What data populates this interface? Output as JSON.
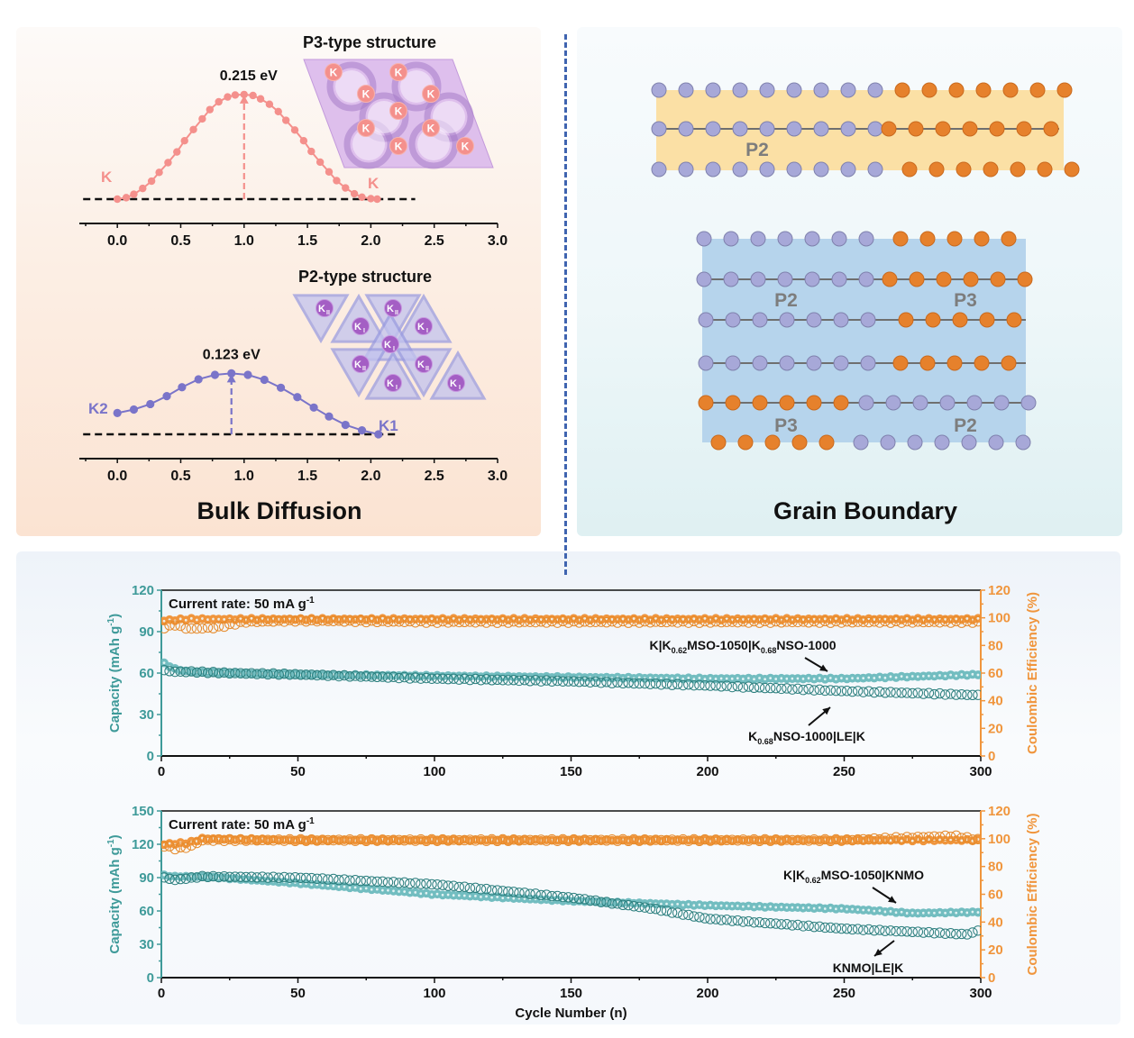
{
  "layout_panels": {
    "bulk_title": "Bulk Diffusion",
    "grain_title": "Grain Boundary"
  },
  "colors": {
    "p3_curve": "#f4908c",
    "p2_curve": "#7a74c9",
    "purple_atom": "#a7a8d8",
    "orange_atom": "#e6812c",
    "p2_band": "#fbe0a5",
    "gb_band": "#b6d4ec",
    "teal": "#3e9a99",
    "teal_fill": "#72bdc0",
    "orange_axis": "#f0953c",
    "divider": "#3f64b0"
  },
  "grain_boundary": {
    "top": {
      "band_label": "P2",
      "rows": [
        {
          "purple": 9,
          "orange": 7,
          "bonded": false
        },
        {
          "purple": 9,
          "orange": 7,
          "bonded": true
        },
        {
          "purple": 9,
          "orange": 7,
          "bonded": false
        }
      ]
    },
    "bottom": {
      "labels": [
        "P2",
        "P3",
        "P3",
        "P2"
      ],
      "rows": [
        {
          "left": "purple",
          "left_n": 7,
          "right": "orange",
          "right_n": 5,
          "bonded": false
        },
        {
          "left": "purple",
          "left_n": 7,
          "right": "orange",
          "right_n": 6,
          "bonded": true
        },
        {
          "left": "purple",
          "left_n": 7,
          "right": "orange",
          "right_n": 5,
          "bonded": true
        },
        {
          "left": "purple",
          "left_n": 7,
          "right": "orange",
          "right_n": 5,
          "bonded": true
        },
        {
          "left": "orange",
          "left_n": 6,
          "right": "purple",
          "right_n": 7,
          "bonded": true
        },
        {
          "left": "orange",
          "left_n": 5,
          "right": "purple",
          "right_n": 7,
          "bonded": false
        }
      ]
    }
  },
  "chart_data": [
    {
      "type": "line",
      "id": "p3-energy-profile",
      "title": "P3-type structure",
      "annotation": "0.215 eV",
      "start_label": "K",
      "end_label": "K",
      "x_ticks": [
        "0.0",
        "0.5",
        "1.0",
        "1.5",
        "2.0",
        "2.5",
        "3.0"
      ],
      "xlim": [
        -0.3,
        3.0
      ],
      "barrier_eV": 0.215,
      "barrier_x": 1.0,
      "structure_ion_labels": [
        "K",
        "K",
        "K",
        "K",
        "K",
        "K",
        "K",
        "K",
        "K"
      ],
      "x": [
        0.0,
        0.07,
        0.13,
        0.2,
        0.27,
        0.33,
        0.4,
        0.47,
        0.53,
        0.6,
        0.67,
        0.73,
        0.8,
        0.87,
        0.93,
        1.0,
        1.07,
        1.13,
        1.2,
        1.27,
        1.33,
        1.4,
        1.47,
        1.53,
        1.6,
        1.67,
        1.73,
        1.8,
        1.87,
        1.93,
        2.0,
        2.05
      ],
      "y": [
        0.0,
        0.003,
        0.01,
        0.022,
        0.037,
        0.055,
        0.075,
        0.097,
        0.12,
        0.143,
        0.165,
        0.184,
        0.2,
        0.21,
        0.214,
        0.215,
        0.213,
        0.206,
        0.195,
        0.18,
        0.162,
        0.142,
        0.12,
        0.098,
        0.076,
        0.056,
        0.038,
        0.023,
        0.011,
        0.004,
        0.001,
        0.0
      ]
    },
    {
      "type": "line",
      "id": "p2-energy-profile",
      "title": "P2-type structure",
      "annotation": "0.123 eV",
      "start_label": "K2",
      "end_label": "K1",
      "x_ticks": [
        "0.0",
        "0.5",
        "1.0",
        "1.5",
        "2.0",
        "2.5",
        "3.0"
      ],
      "xlim": [
        -0.3,
        3.0
      ],
      "barrier_eV": 0.123,
      "barrier_x": 0.9,
      "structure_ion_labels": [
        "KII",
        "KII",
        "KI",
        "KI",
        "KI",
        "KII",
        "KII",
        "KI",
        "KI"
      ],
      "x": [
        0.0,
        0.13,
        0.26,
        0.39,
        0.51,
        0.64,
        0.77,
        0.9,
        1.03,
        1.16,
        1.29,
        1.42,
        1.55,
        1.67,
        1.8,
        1.93,
        2.06
      ],
      "y": [
        0.043,
        0.05,
        0.061,
        0.077,
        0.095,
        0.111,
        0.12,
        0.123,
        0.12,
        0.11,
        0.094,
        0.075,
        0.054,
        0.036,
        0.019,
        0.008,
        0.0
      ]
    },
    {
      "type": "scatter",
      "id": "cycling-knso",
      "annotation": "Current rate: 50 mA g",
      "annotation_sup": "-1",
      "xlabel": "",
      "ylabel_left": "Capacity (mAh g",
      "ylabel_left_sup": "-1",
      "ylabel_left_tail": ")",
      "ylabel_right": "Coulombic Efficiency (%)",
      "xlim": [
        0,
        300
      ],
      "ylim_left": [
        0,
        120
      ],
      "ylim_right": [
        0,
        120
      ],
      "x_ticks": [
        "0",
        "50",
        "100",
        "150",
        "200",
        "250",
        "300"
      ],
      "y_left_ticks": [
        "0",
        "30",
        "60",
        "90",
        "120"
      ],
      "y_right_ticks": [
        "0",
        "20",
        "40",
        "60",
        "80",
        "100",
        "120"
      ],
      "legend": {
        "series_a_label": {
          "pre": "K|K",
          "s1": "0.62",
          "mid": "MSO-1050|K",
          "s2": "0.68",
          "post": "NSO-1000"
        },
        "series_b_label": {
          "pre": "K",
          "s1": "0.68",
          "post": "NSO-1000|LE|K"
        }
      },
      "series": [
        {
          "name": "K|K0.62MSO-1050|K0.68NSO-1000 capacity",
          "axis": "left",
          "style": "filled",
          "x": [
            1,
            5,
            10,
            25,
            50,
            100,
            150,
            200,
            250,
            300
          ],
          "values": [
            67,
            63,
            61,
            60,
            59,
            58,
            57,
            56,
            56,
            59
          ]
        },
        {
          "name": "K0.68NSO-1000|LE|K capacity",
          "axis": "left",
          "style": "hollow",
          "x": [
            1,
            5,
            10,
            25,
            50,
            100,
            150,
            200,
            250,
            300
          ],
          "values": [
            62,
            61,
            61,
            60,
            59,
            56,
            54,
            51,
            47,
            44
          ]
        },
        {
          "name": "K|K0.62MSO-1050|K0.68NSO-1000 CE",
          "axis": "right",
          "style": "filled",
          "x": [
            1,
            10,
            50,
            100,
            150,
            200,
            250,
            300
          ],
          "values": [
            98,
            99,
            99,
            99,
            99,
            99,
            99,
            99
          ]
        },
        {
          "name": "K0.68NSO-1000|LE|K CE",
          "axis": "right",
          "style": "hollow",
          "x": [
            1,
            5,
            10,
            20,
            30,
            50,
            100,
            150,
            200,
            250,
            300
          ],
          "values": [
            93,
            95,
            92,
            93,
            97,
            98,
            97,
            97,
            97,
            97,
            97
          ]
        }
      ]
    },
    {
      "type": "scatter",
      "id": "cycling-knmo",
      "annotation": "Current rate: 50 mA g",
      "annotation_sup": "-1",
      "xlabel": "Cycle Number (n)",
      "ylabel_left": "Capacity (mAh g",
      "ylabel_left_sup": "-1",
      "ylabel_left_tail": ")",
      "ylabel_right": "Coulombic Efficiency (%)",
      "xlim": [
        0,
        300
      ],
      "ylim_left": [
        0,
        150
      ],
      "ylim_right": [
        0,
        120
      ],
      "x_ticks": [
        "0",
        "50",
        "100",
        "150",
        "200",
        "250",
        "300"
      ],
      "y_left_ticks": [
        "0",
        "30",
        "60",
        "90",
        "120",
        "150"
      ],
      "y_right_ticks": [
        "0",
        "20",
        "40",
        "60",
        "80",
        "100",
        "120"
      ],
      "legend": {
        "series_a_label": {
          "pre": "K|K",
          "s1": "0.62",
          "post": "MSO-1050|KNMO"
        },
        "series_b_label": {
          "pre": "KNMO|LE|K"
        }
      },
      "series": [
        {
          "name": "K|K0.62MSO-1050|KNMO capacity",
          "axis": "left",
          "style": "filled",
          "x": [
            1,
            5,
            15,
            50,
            100,
            150,
            200,
            250,
            275,
            300
          ],
          "values": [
            92,
            91,
            91,
            85,
            75,
            69,
            65,
            62,
            58,
            59
          ]
        },
        {
          "name": "KNMO|LE|K capacity",
          "axis": "left",
          "style": "hollow",
          "x": [
            1,
            5,
            15,
            50,
            100,
            150,
            180,
            200,
            250,
            295,
            300
          ],
          "values": [
            90,
            88,
            91,
            90,
            84,
            72,
            62,
            53,
            44,
            39,
            43
          ]
        },
        {
          "name": "K|K0.62MSO-1050|KNMO CE",
          "axis": "right",
          "style": "filled",
          "x": [
            1,
            10,
            15,
            50,
            100,
            150,
            200,
            250,
            300
          ],
          "values": [
            96,
            97,
            100,
            99,
            99,
            99,
            99,
            99,
            99
          ]
        },
        {
          "name": "KNMO|LE|K CE",
          "axis": "right",
          "style": "hollow",
          "x": [
            1,
            5,
            10,
            15,
            50,
            100,
            150,
            200,
            250,
            290,
            300
          ],
          "values": [
            95,
            93,
            94,
            99,
            99,
            99,
            99,
            99,
            99,
            102,
            99
          ]
        }
      ]
    }
  ]
}
